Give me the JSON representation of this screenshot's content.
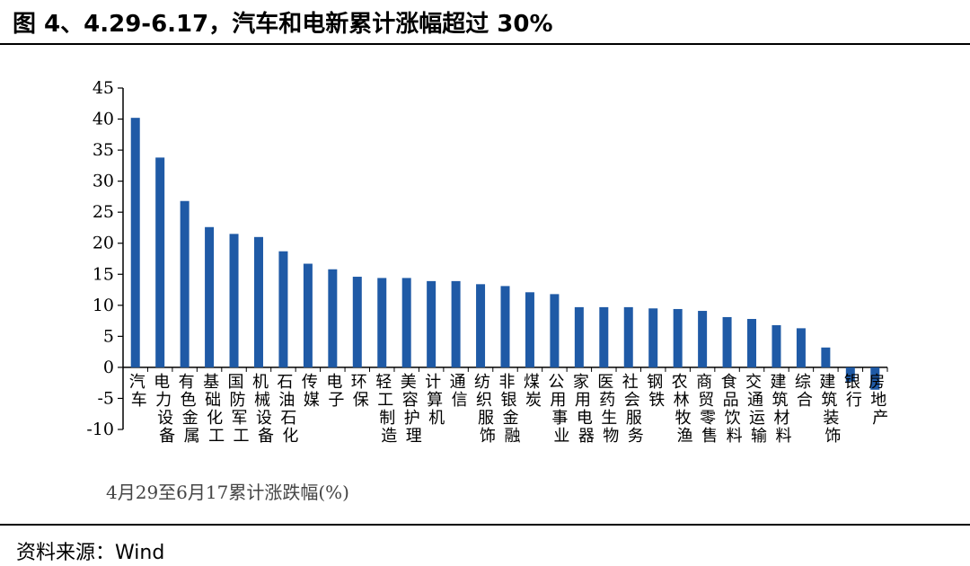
{
  "title": "图 4、4.29-6.17，汽车和电新累计涨幅超过 30%",
  "source": "资料来源：Wind",
  "chart_data": {
    "type": "bar",
    "title": "",
    "xlabel": "",
    "ylabel": "",
    "ylim": [
      -10,
      45
    ],
    "yticks": [
      45,
      40,
      35,
      30,
      25,
      20,
      15,
      10,
      5,
      0,
      -5,
      -10
    ],
    "grid": false,
    "legend_position": "bottom-left",
    "bar_color": "#1f5aa6",
    "categories": [
      "汽车",
      "电力设备",
      "有色金属",
      "基础化工",
      "国防军工",
      "机械设备",
      "石油石化",
      "传媒",
      "电子",
      "环保",
      "轻工制造",
      "美容护理",
      "计算机",
      "通信",
      "纺织服饰",
      "非银金融",
      "煤炭",
      "公用事业",
      "家用电器",
      "医药生物",
      "社会服务",
      "钢铁",
      "农林牧渔",
      "商贸零售",
      "食品饮料",
      "交通运输",
      "建筑材料",
      "综合",
      "建筑装饰",
      "银行",
      "房地产"
    ],
    "series": [
      {
        "name": "4月29至6月17累计涨跌幅(%)",
        "values": [
          40.2,
          33.8,
          26.8,
          22.6,
          21.5,
          21.0,
          18.7,
          16.7,
          15.8,
          14.6,
          14.4,
          14.4,
          13.9,
          13.9,
          13.4,
          13.1,
          12.1,
          11.8,
          9.7,
          9.7,
          9.7,
          9.5,
          9.4,
          9.1,
          8.1,
          7.8,
          6.8,
          6.3,
          3.2,
          -2.3,
          -3.6
        ]
      }
    ]
  }
}
